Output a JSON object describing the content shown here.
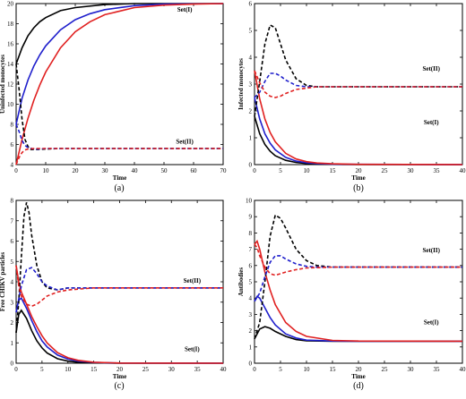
{
  "colors": {
    "black": "#000000",
    "blue": "#1f1fcc",
    "red": "#e02020"
  },
  "chart_data": [
    {
      "type": "line",
      "panel_label": "(a)",
      "xlabel": "Time",
      "ylabel": "Uninfected monocytes",
      "xlim": [
        0,
        70
      ],
      "ylim": [
        4,
        20
      ],
      "xticks": [
        0,
        10,
        20,
        30,
        40,
        50,
        60,
        70
      ],
      "yticks": [
        4,
        6,
        8,
        10,
        12,
        14,
        16,
        18,
        20
      ],
      "annotations": [
        {
          "text": "Set(I)",
          "x": 57,
          "y": 19.2
        },
        {
          "text": "Set(II)",
          "x": 57,
          "y": 6.1
        }
      ],
      "series": [
        {
          "color": "black",
          "dash": false,
          "x": [
            0,
            2,
            4,
            6,
            8,
            10,
            15,
            20,
            30,
            40,
            50,
            70
          ],
          "y": [
            14,
            15.6,
            16.8,
            17.6,
            18.2,
            18.6,
            19.3,
            19.6,
            19.9,
            20,
            20,
            20
          ]
        },
        {
          "color": "blue",
          "dash": false,
          "x": [
            0,
            2,
            4,
            6,
            8,
            10,
            15,
            20,
            25,
            30,
            40,
            50,
            70
          ],
          "y": [
            8,
            10.6,
            12.4,
            13.8,
            14.9,
            15.8,
            17.4,
            18.4,
            19,
            19.4,
            19.8,
            19.95,
            20
          ]
        },
        {
          "color": "red",
          "dash": false,
          "x": [
            0,
            2,
            4,
            6,
            8,
            10,
            15,
            20,
            25,
            30,
            40,
            50,
            60,
            70
          ],
          "y": [
            4,
            6.5,
            8.6,
            10.4,
            11.9,
            13.2,
            15.6,
            17.2,
            18.2,
            18.9,
            19.6,
            19.85,
            19.95,
            20
          ]
        },
        {
          "color": "black",
          "dash": true,
          "x": [
            0,
            1,
            2,
            3,
            4,
            5,
            7,
            10,
            15,
            20,
            40,
            70
          ],
          "y": [
            14,
            11.5,
            8.5,
            6.5,
            5.8,
            5.5,
            5.5,
            5.55,
            5.6,
            5.6,
            5.6,
            5.6
          ]
        },
        {
          "color": "blue",
          "dash": true,
          "x": [
            0,
            1,
            2,
            3,
            4,
            6,
            8,
            10,
            15,
            70
          ],
          "y": [
            8,
            7.3,
            6.4,
            5.9,
            5.7,
            5.55,
            5.55,
            5.6,
            5.6,
            5.6
          ]
        },
        {
          "color": "red",
          "dash": true,
          "x": [
            0,
            1,
            2,
            3,
            4,
            6,
            8,
            10,
            15,
            70
          ],
          "y": [
            4,
            4.7,
            5.2,
            5.45,
            5.55,
            5.6,
            5.6,
            5.6,
            5.6,
            5.6
          ]
        }
      ]
    },
    {
      "type": "line",
      "panel_label": "(b)",
      "xlabel": "Time",
      "ylabel": "Infected monocytes",
      "xlim": [
        0,
        40
      ],
      "ylim": [
        0,
        6
      ],
      "xticks": [
        0,
        5,
        10,
        15,
        20,
        25,
        30,
        35,
        40
      ],
      "yticks": [
        0,
        1,
        2,
        3,
        4,
        5,
        6
      ],
      "annotations": [
        {
          "text": "Set(II)",
          "x": 34,
          "y": 3.5
        },
        {
          "text": "Set(I)",
          "x": 34,
          "y": 1.5
        }
      ],
      "series": [
        {
          "color": "black",
          "dash": false,
          "x": [
            0,
            1,
            2,
            3,
            4,
            6,
            8,
            10,
            12,
            15,
            20,
            40
          ],
          "y": [
            1.8,
            1.15,
            0.75,
            0.5,
            0.33,
            0.16,
            0.08,
            0.04,
            0.02,
            0.01,
            0,
            0
          ]
        },
        {
          "color": "blue",
          "dash": false,
          "x": [
            0,
            1,
            2,
            3,
            4,
            6,
            8,
            10,
            12,
            15,
            20,
            40
          ],
          "y": [
            2.5,
            1.7,
            1.15,
            0.8,
            0.55,
            0.27,
            0.13,
            0.07,
            0.04,
            0.02,
            0.01,
            0
          ]
        },
        {
          "color": "red",
          "dash": false,
          "x": [
            0,
            1,
            2,
            3,
            4,
            6,
            8,
            10,
            12,
            15,
            20,
            40
          ],
          "y": [
            3.5,
            2.45,
            1.7,
            1.2,
            0.85,
            0.42,
            0.21,
            0.11,
            0.06,
            0.03,
            0.01,
            0
          ]
        },
        {
          "color": "black",
          "dash": true,
          "x": [
            0,
            1,
            2,
            3,
            4,
            5,
            6,
            8,
            10,
            12,
            15,
            20,
            40
          ],
          "y": [
            1.8,
            3.1,
            4.5,
            5.2,
            5.1,
            4.5,
            3.9,
            3.2,
            2.95,
            2.9,
            2.9,
            2.9,
            2.9
          ]
        },
        {
          "color": "blue",
          "dash": true,
          "x": [
            0,
            1,
            2,
            3,
            4,
            5,
            6,
            8,
            10,
            12,
            15,
            20,
            40
          ],
          "y": [
            2.5,
            2.7,
            3.1,
            3.4,
            3.4,
            3.3,
            3.15,
            2.95,
            2.9,
            2.9,
            2.9,
            2.9,
            2.9
          ]
        },
        {
          "color": "red",
          "dash": true,
          "x": [
            0,
            1,
            2,
            3,
            4,
            5,
            6,
            8,
            10,
            12,
            15,
            20,
            40
          ],
          "y": [
            3.5,
            3.05,
            2.7,
            2.55,
            2.5,
            2.55,
            2.65,
            2.8,
            2.85,
            2.9,
            2.9,
            2.9,
            2.9
          ]
        }
      ]
    },
    {
      "type": "line",
      "panel_label": "(c)",
      "xlabel": "Time",
      "ylabel": "Free CHIKV particles",
      "xlim": [
        0,
        40
      ],
      "ylim": [
        0,
        8
      ],
      "xticks": [
        0,
        5,
        10,
        15,
        20,
        25,
        30,
        35,
        40
      ],
      "yticks": [
        0,
        1,
        2,
        3,
        4,
        5,
        6,
        7,
        8
      ],
      "annotations": [
        {
          "text": "Set(II)",
          "x": 34,
          "y": 3.95
        },
        {
          "text": "Set(I)",
          "x": 34,
          "y": 0.6
        }
      ],
      "series": [
        {
          "color": "black",
          "dash": false,
          "x": [
            0,
            0.5,
            1,
            2,
            3,
            4,
            5,
            6,
            8,
            10,
            12,
            15,
            20,
            40
          ],
          "y": [
            1.5,
            2.4,
            2.6,
            2.2,
            1.6,
            1.1,
            0.75,
            0.5,
            0.22,
            0.1,
            0.05,
            0.02,
            0,
            0
          ]
        },
        {
          "color": "blue",
          "dash": false,
          "x": [
            0,
            0.5,
            1,
            2,
            3,
            4,
            5,
            6,
            8,
            10,
            12,
            15,
            20,
            40
          ],
          "y": [
            2.5,
            3.1,
            3.2,
            2.7,
            2.1,
            1.55,
            1.1,
            0.8,
            0.4,
            0.2,
            0.1,
            0.04,
            0.01,
            0
          ]
        },
        {
          "color": "red",
          "dash": false,
          "x": [
            0,
            0.5,
            1,
            2,
            3,
            4,
            5,
            6,
            8,
            10,
            12,
            15,
            20,
            40
          ],
          "y": [
            4.8,
            4,
            3.5,
            2.9,
            2.3,
            1.8,
            1.35,
            1,
            0.52,
            0.27,
            0.14,
            0.05,
            0.01,
            0
          ]
        },
        {
          "color": "black",
          "dash": true,
          "x": [
            0,
            0.5,
            1,
            1.5,
            2,
            2.5,
            3,
            4,
            5,
            6,
            8,
            10,
            15,
            40
          ],
          "y": [
            1.5,
            3,
            5.2,
            7.2,
            7.9,
            7.4,
            6.3,
            4.8,
            4,
            3.7,
            3.6,
            3.7,
            3.7,
            3.7
          ]
        },
        {
          "color": "blue",
          "dash": true,
          "x": [
            0,
            1,
            2,
            3,
            4,
            5,
            6,
            8,
            10,
            15,
            40
          ],
          "y": [
            2.5,
            3.8,
            4.6,
            4.7,
            4.4,
            4,
            3.8,
            3.6,
            3.7,
            3.7,
            3.7
          ]
        },
        {
          "color": "red",
          "dash": true,
          "x": [
            0,
            0.5,
            1,
            2,
            3,
            4,
            5,
            6,
            8,
            10,
            15,
            40
          ],
          "y": [
            4.8,
            3.8,
            3.3,
            2.9,
            2.8,
            2.9,
            3.1,
            3.3,
            3.5,
            3.6,
            3.7,
            3.7
          ]
        }
      ]
    },
    {
      "type": "line",
      "panel_label": "(d)",
      "xlabel": "Time",
      "ylabel": "Antibodies",
      "xlim": [
        0,
        40
      ],
      "ylim": [
        0,
        10
      ],
      "xticks": [
        0,
        5,
        10,
        15,
        20,
        25,
        30,
        35,
        40
      ],
      "yticks": [
        0,
        1,
        2,
        3,
        4,
        5,
        6,
        7,
        8,
        9,
        10
      ],
      "annotations": [
        {
          "text": "Set(II)",
          "x": 34,
          "y": 6.8
        },
        {
          "text": "Set(I)",
          "x": 34,
          "y": 2.4
        }
      ],
      "series": [
        {
          "color": "black",
          "dash": false,
          "x": [
            0,
            1,
            2,
            3,
            4,
            6,
            8,
            10,
            15,
            20,
            40
          ],
          "y": [
            1.5,
            2.1,
            2.25,
            2.15,
            1.95,
            1.65,
            1.45,
            1.38,
            1.35,
            1.35,
            1.35
          ]
        },
        {
          "color": "blue",
          "dash": false,
          "x": [
            0,
            0.5,
            1,
            2,
            3,
            4,
            6,
            8,
            10,
            15,
            20,
            40
          ],
          "y": [
            3.8,
            4.1,
            4,
            3.4,
            2.8,
            2.35,
            1.8,
            1.55,
            1.42,
            1.36,
            1.35,
            1.35
          ]
        },
        {
          "color": "red",
          "dash": false,
          "x": [
            0,
            0.5,
            1,
            2,
            3,
            4,
            6,
            8,
            10,
            15,
            20,
            40
          ],
          "y": [
            7.3,
            7.5,
            7,
            5.6,
            4.5,
            3.6,
            2.5,
            1.95,
            1.65,
            1.4,
            1.36,
            1.35
          ]
        },
        {
          "color": "black",
          "dash": true,
          "x": [
            0,
            1,
            2,
            3,
            4,
            5,
            6,
            8,
            10,
            12,
            15,
            40
          ],
          "y": [
            1.5,
            2.5,
            5,
            7.8,
            9.1,
            8.9,
            8.3,
            7,
            6.3,
            6,
            5.9,
            5.9
          ]
        },
        {
          "color": "blue",
          "dash": true,
          "x": [
            0,
            1,
            2,
            3,
            4,
            5,
            6,
            8,
            10,
            12,
            15,
            40
          ],
          "y": [
            3.8,
            4.3,
            5.3,
            6.2,
            6.6,
            6.6,
            6.4,
            6.1,
            5.95,
            5.9,
            5.9,
            5.9
          ]
        },
        {
          "color": "red",
          "dash": true,
          "x": [
            0,
            0.5,
            1,
            2,
            3,
            4,
            5,
            6,
            8,
            10,
            15,
            40
          ],
          "y": [
            7.3,
            7.1,
            6.6,
            5.9,
            5.5,
            5.4,
            5.5,
            5.6,
            5.75,
            5.85,
            5.9,
            5.9
          ]
        }
      ]
    }
  ]
}
